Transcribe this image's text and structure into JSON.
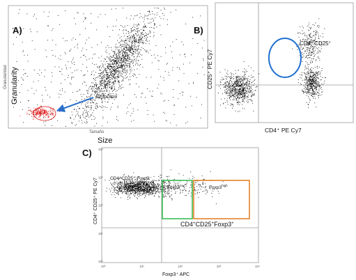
{
  "chart_data": [
    {
      "type": "scatter",
      "panel_label": "A)",
      "xlabel_small": "Tamaño",
      "xlabel_large": "Size",
      "ylabel_small": "Granularidad",
      "ylabel_large": "Granularity",
      "annotation": "Linfocitos",
      "log_scale": false,
      "populations": [
        {
          "name": "main",
          "color": "#000000",
          "center": [
            0.55,
            0.52
          ],
          "spread": [
            0.05,
            0.2
          ],
          "count": 1400
        },
        {
          "name": "Linfocitos",
          "color": "#e01010",
          "center": [
            0.16,
            0.12
          ],
          "spread": [
            0.03,
            0.02
          ],
          "count": 260
        },
        {
          "name": "background",
          "color": "#000000",
          "center": [
            0.45,
            0.45
          ],
          "spread": [
            0.35,
            0.35
          ],
          "count": 700
        }
      ]
    },
    {
      "type": "scatter",
      "panel_label": "B)",
      "xlabel": "CD4⁺ PE Cy7",
      "ylabel": "CD25⁺ PE Cy7",
      "gate_label_base": "CD4",
      "gate_label_sup1": "+",
      "gate_label_mid": " CD25",
      "gate_label_sup2": "+",
      "log_scale": true,
      "populations": [
        {
          "name": "CD4- CD25-",
          "center": [
            0.16,
            0.28
          ],
          "spread": [
            0.055,
            0.07
          ],
          "count": 700
        },
        {
          "name": "CD4+ CD25-",
          "center": [
            0.7,
            0.33
          ],
          "spread": [
            0.035,
            0.06
          ],
          "count": 450
        },
        {
          "name": "CD4+ CD25+",
          "center": [
            0.69,
            0.64
          ],
          "spread": [
            0.045,
            0.1
          ],
          "count": 260
        }
      ]
    },
    {
      "type": "scatter",
      "panel_label": "C)",
      "xlabel": "Foxp3⁺ APC",
      "ylabel": "CD4⁺ CD25⁺ PE Cy7",
      "neg_label": "CD4⁺CD25⁺ Foxp3⁻",
      "low_label_base": "Foxp3",
      "low_label_sup": "low",
      "high_label_base": "Foxp3",
      "high_label_sup": "high",
      "pos_label_base": "CD4",
      "pos_label_sup1": "+",
      "pos_label_mid": "CD25",
      "pos_label_sup2": "+",
      "pos_label_end": "Foxp3",
      "pos_label_sup3": "+",
      "x_ticks": [
        "10⁰",
        "10¹",
        "10²",
        "10³",
        "10⁴"
      ],
      "y_ticks": [
        "10⁰",
        "10¹",
        "10²",
        "10³",
        "10⁴"
      ],
      "log_scale": true,
      "gate_colors": {
        "low": "#2db84a",
        "high": "#e07a1a"
      },
      "populations": [
        {
          "name": "Foxp3-",
          "center": [
            0.23,
            0.66
          ],
          "spread": [
            0.08,
            0.035
          ],
          "count": 1100
        },
        {
          "name": "Foxp3 low",
          "center": [
            0.41,
            0.66
          ],
          "spread": [
            0.03,
            0.05
          ],
          "count": 110
        },
        {
          "name": "Foxp3 high",
          "center": [
            0.6,
            0.67
          ],
          "spread": [
            0.07,
            0.05
          ],
          "count": 120
        }
      ]
    }
  ]
}
